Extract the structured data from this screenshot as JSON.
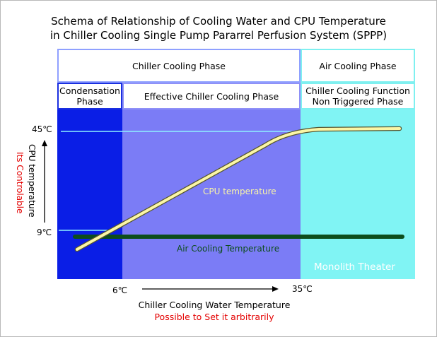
{
  "title": {
    "line1": "Schema of Relationship of Cooling Water and CPU Temperature",
    "line2": "in Chiller Cooling Single Pump Pararrel Perfusion System (SPPP)"
  },
  "phases": {
    "chiller_cooling": "Chiller Cooling Phase",
    "air_cooling": "Air Cooling Phase",
    "condensation_line1": "Condensation",
    "condensation_line2": "Phase",
    "effective_chiller": "Effective Chiller Cooling Phase",
    "non_triggered_line1": "Chiller Cooling Function",
    "non_triggered_line2": "Non Triggered Phase"
  },
  "labels": {
    "cpu_temperature": "CPU temperature",
    "air_cooling_temperature": "Air Cooling Temperature",
    "watermark": "Monolith Theater"
  },
  "ticks": {
    "y_max": "45℃",
    "y_min": "9℃",
    "x_min": "6℃",
    "x_max": "35℃"
  },
  "axis": {
    "y_label": "CPU temperature",
    "y_note": "Its Controlable",
    "x_label": "Chiller Cooling Water Temperature",
    "x_note": "Possible to Set it arbitrarily"
  },
  "colors": {
    "condensation_column": "#0a1ee6",
    "effective_chiller_column": "#7b7cf6",
    "air_cooling_column": "#80f4f4",
    "cpu_curve": "#fbf6a6",
    "air_cooling_line": "#0d4d1c",
    "note_text": "#e40000"
  }
}
